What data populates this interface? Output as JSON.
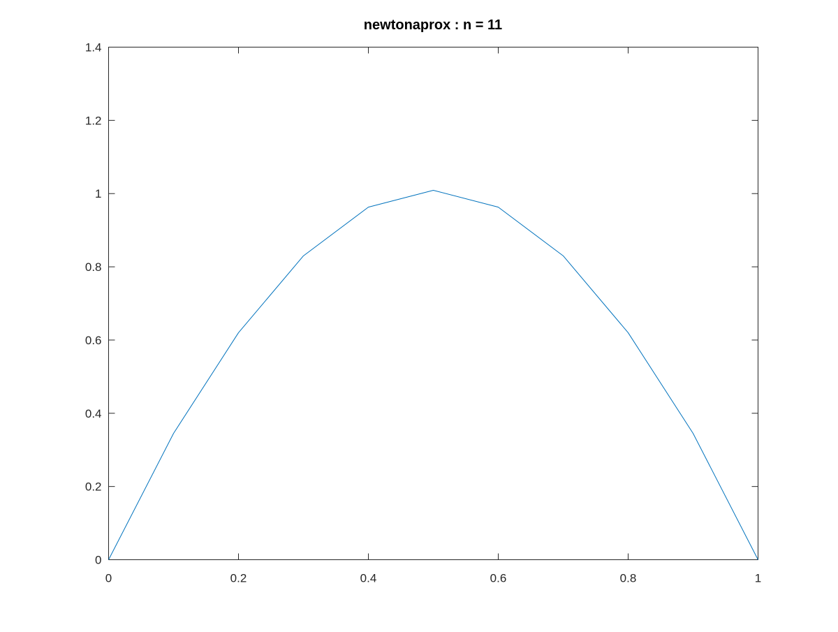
{
  "chart_data": {
    "type": "line",
    "title": "newtonaprox : n = 11",
    "xlabel": "",
    "ylabel": "",
    "xlim": [
      0,
      1
    ],
    "ylim": [
      0,
      1.4
    ],
    "grid": false,
    "box": true,
    "xticks": [
      0,
      0.2,
      0.4,
      0.6,
      0.8,
      1
    ],
    "xtick_labels": [
      "0",
      "0.2",
      "0.4",
      "0.6",
      "0.8",
      "1"
    ],
    "yticks": [
      0,
      0.2,
      0.4,
      0.6,
      0.8,
      1,
      1.2,
      1.4
    ],
    "ytick_labels": [
      "0",
      "0.2",
      "0.4",
      "0.6",
      "0.8",
      "1",
      "1.2",
      "1.4"
    ],
    "series": [
      {
        "color": "#0072bd",
        "x": [
          0,
          0.1,
          0.2,
          0.3,
          0.4,
          0.5,
          0.6,
          0.7,
          0.8,
          0.9,
          1
        ],
        "y": [
          0,
          0.345,
          0.62,
          0.83,
          0.963,
          1.009,
          0.963,
          0.83,
          0.62,
          0.345,
          0
        ]
      }
    ]
  }
}
